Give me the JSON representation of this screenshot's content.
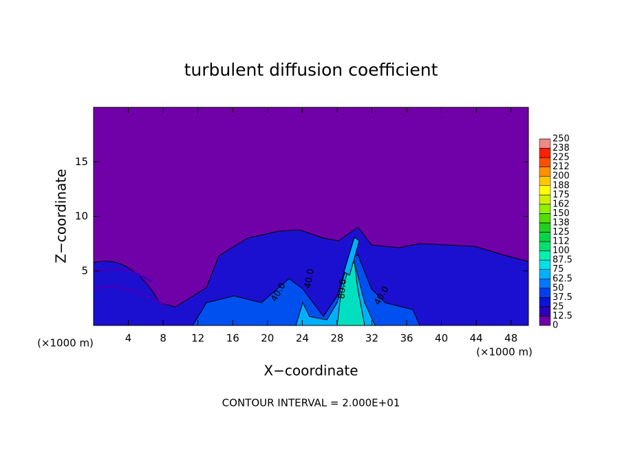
{
  "chart_data": {
    "type": "contour",
    "title": "turbulent diffusion coefficient",
    "x_label": "X−coordinate",
    "y_label": "Z−coordinate",
    "x_unit": "(×1000 m)",
    "footer": "CONTOUR INTERVAL = 2.000E+01",
    "xlim": [
      0,
      50
    ],
    "ylim": [
      0,
      20
    ],
    "xticks": [
      4,
      8,
      12,
      16,
      20,
      24,
      28,
      32,
      36,
      40,
      44,
      48
    ],
    "yticks": [
      5,
      10,
      15
    ],
    "annotations": [
      "40.0",
      "40.0",
      "80.0",
      "40.0"
    ],
    "levels": [
      0,
      12.5,
      25,
      37.5,
      50,
      62.5,
      75,
      87.5,
      100,
      {
        "value": 112.5,
        "label": "112"
      },
      125,
      {
        "value": 137.5,
        "label": "138"
      },
      150,
      {
        "value": 162.5,
        "label": "162"
      },
      175,
      {
        "value": 187.5,
        "label": "188"
      },
      200,
      {
        "value": 212.5,
        "label": "212"
      },
      225,
      {
        "value": 237.5,
        "label": "238"
      },
      250
    ],
    "colors": [
      "#7000a8",
      "#2c00b8",
      "#0a14d8",
      "#0040f0",
      "#0078ff",
      "#00b0ff",
      "#00e0e8",
      "#00f0b0",
      "#00e070",
      "#00d848",
      "#20d020",
      "#50e000",
      "#90f000",
      "#d0f000",
      "#ffff00",
      "#ffc800",
      "#ff9000",
      "#ff5000",
      "#ff2000",
      "#f08888"
    ]
  }
}
